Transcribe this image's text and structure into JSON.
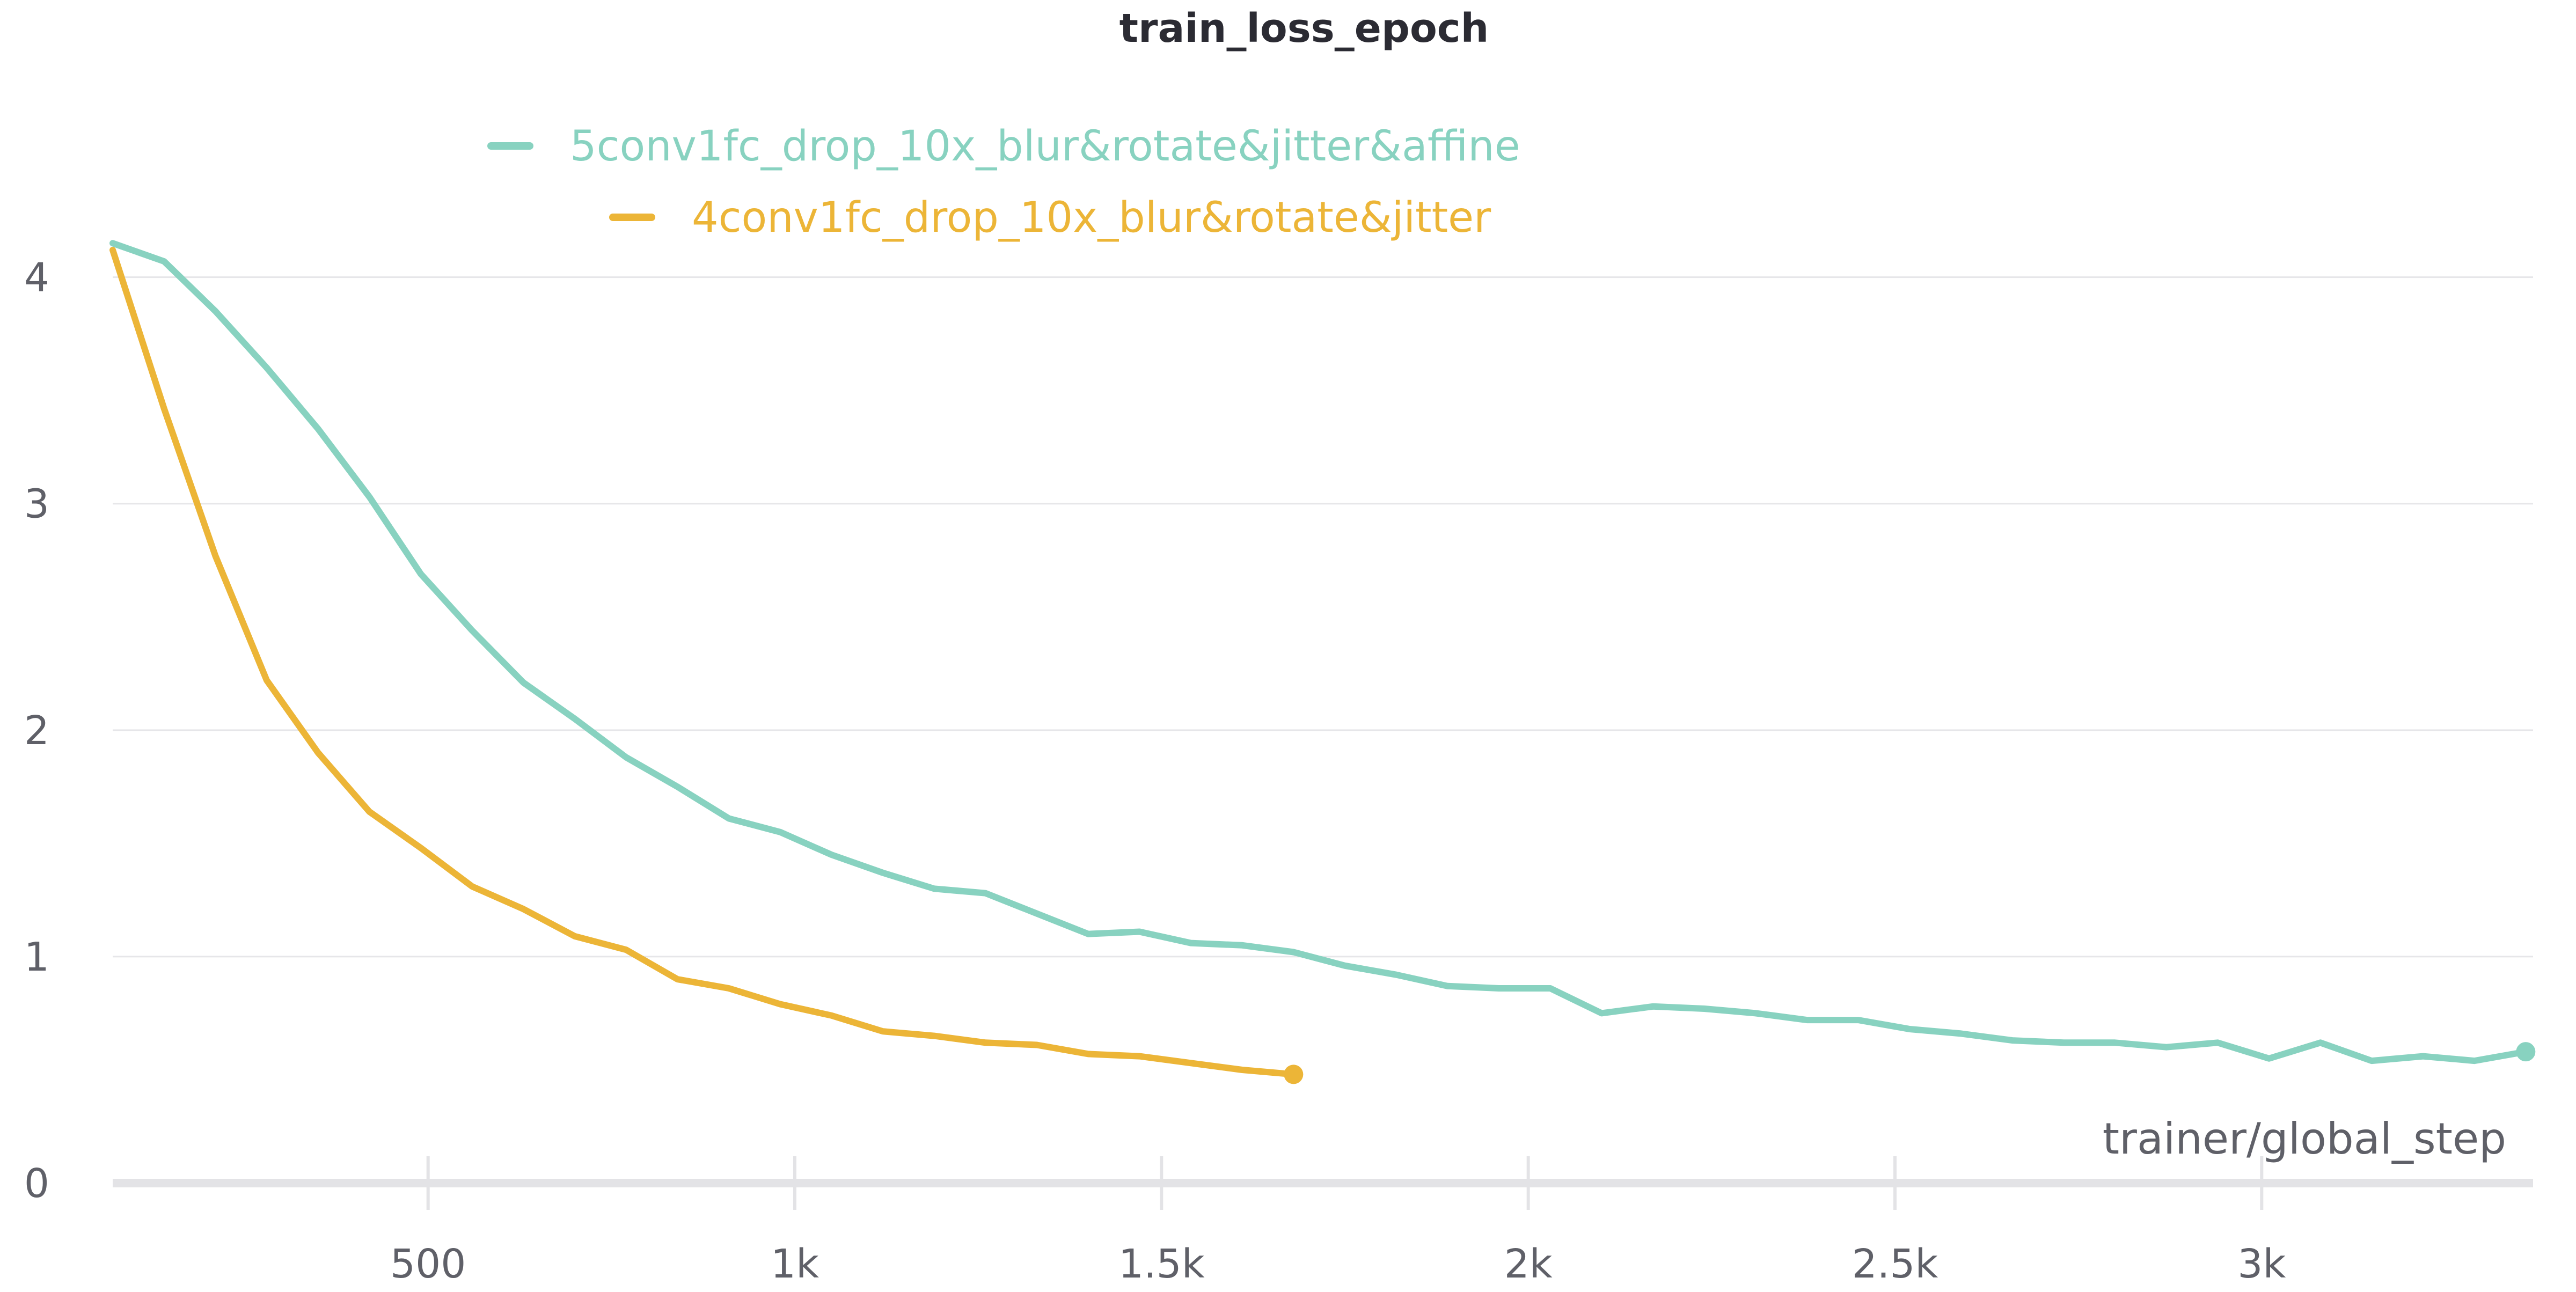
{
  "chart_data": {
    "type": "line",
    "title": "train_loss_epoch",
    "xlabel": "trainer/global_step",
    "ylabel": "",
    "xlim": [
      70,
      3370
    ],
    "ylim": [
      0,
      4.3
    ],
    "x_ticks": [
      500,
      1000,
      1500,
      2000,
      2500,
      3000
    ],
    "x_tick_labels": [
      "500",
      "1k",
      "1.5k",
      "2k",
      "2.5k",
      "3k"
    ],
    "y_ticks": [
      0,
      1,
      2,
      3,
      4
    ],
    "y_tick_labels": [
      "0",
      "1",
      "2",
      "3",
      "4"
    ],
    "grid": true,
    "legend_position": "top-left",
    "series": [
      {
        "name": "5conv1fc_drop_10x_blur&rotate&jitter&affine",
        "color": "#88d2c0",
        "x": [
          70,
          140,
          210,
          280,
          350,
          420,
          490,
          560,
          630,
          700,
          770,
          840,
          910,
          980,
          1050,
          1120,
          1190,
          1260,
          1330,
          1400,
          1470,
          1540,
          1610,
          1680,
          1750,
          1820,
          1890,
          1960,
          2030,
          2100,
          2170,
          2240,
          2310,
          2380,
          2450,
          2520,
          2590,
          2660,
          2730,
          2800,
          2870,
          2940,
          3010,
          3080,
          3150,
          3220,
          3290,
          3360
        ],
        "y": [
          4.15,
          4.07,
          3.85,
          3.6,
          3.33,
          3.03,
          2.69,
          2.44,
          2.21,
          2.05,
          1.88,
          1.75,
          1.61,
          1.55,
          1.45,
          1.37,
          1.3,
          1.28,
          1.19,
          1.1,
          1.11,
          1.06,
          1.05,
          1.02,
          0.96,
          0.92,
          0.87,
          0.86,
          0.86,
          0.75,
          0.78,
          0.77,
          0.75,
          0.72,
          0.72,
          0.68,
          0.66,
          0.63,
          0.62,
          0.62,
          0.6,
          0.62,
          0.55,
          0.62,
          0.54,
          0.56,
          0.54,
          0.58
        ]
      },
      {
        "name": "4conv1fc_drop_10x_blur&rotate&jitter",
        "color": "#ecb537",
        "x": [
          70,
          140,
          210,
          280,
          350,
          420,
          490,
          560,
          630,
          700,
          770,
          840,
          910,
          980,
          1050,
          1120,
          1190,
          1260,
          1330,
          1400,
          1470,
          1540,
          1610,
          1680
        ],
        "y": [
          4.12,
          3.42,
          2.77,
          2.22,
          1.9,
          1.64,
          1.48,
          1.31,
          1.21,
          1.09,
          1.03,
          0.9,
          0.86,
          0.79,
          0.74,
          0.67,
          0.65,
          0.62,
          0.61,
          0.57,
          0.56,
          0.53,
          0.5,
          0.48
        ]
      }
    ]
  }
}
